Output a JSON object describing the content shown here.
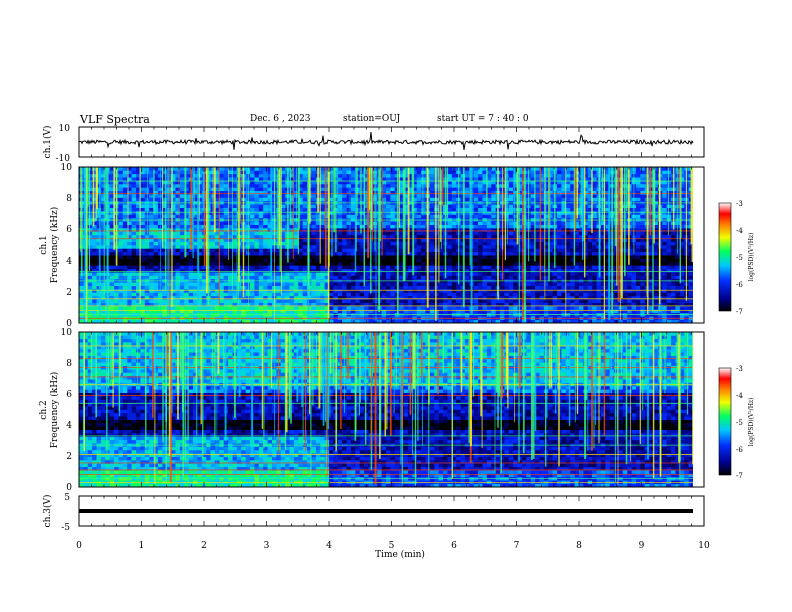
{
  "header": {
    "title": "VLF Spectra",
    "date": "Dec. 6 , 2023",
    "station": "station=OUJ",
    "start": "start UT = 7 : 40 : 0"
  },
  "chart_data": [
    {
      "type": "line",
      "panel": "ch1-waveform",
      "ylabel": "ch.1(V)",
      "ylim": [
        -10,
        10
      ],
      "y_ticks": [
        "10",
        "-10"
      ],
      "xlim": [
        0,
        10
      ],
      "baseline": 0,
      "trace_color": "#000000"
    },
    {
      "type": "heatmap",
      "panel": "ch1-spectrogram",
      "ylabel_channel": "ch.1",
      "ylabel": "Frequency (kHz)",
      "ylim": [
        0,
        10
      ],
      "y_ticks": [
        "0",
        "2",
        "4",
        "6",
        "8",
        "10"
      ],
      "xlim": [
        0,
        10
      ],
      "colorbar": {
        "label": "log(PSD)(V²/Hz)",
        "range": [
          -7,
          -3
        ],
        "ticks": [
          "-3",
          "-4",
          "-5",
          "-6",
          "-7"
        ]
      }
    },
    {
      "type": "heatmap",
      "panel": "ch2-spectrogram",
      "ylabel_channel": "ch.2",
      "ylabel": "Frequency (kHz)",
      "ylim": [
        0,
        10
      ],
      "y_ticks": [
        "0",
        "2",
        "4",
        "6",
        "8",
        "10"
      ],
      "xlim": [
        0,
        10
      ],
      "colorbar": {
        "label": "log(PSD)(V²/Hz)",
        "range": [
          -7,
          -3
        ],
        "ticks": [
          "-3",
          "-4",
          "-5",
          "-6",
          "-7"
        ]
      }
    },
    {
      "type": "line",
      "panel": "ch3-waveform",
      "ylabel": "ch.3(V)",
      "ylim": [
        -5,
        5
      ],
      "y_ticks": [
        "5",
        "-5"
      ],
      "xlim": [
        0,
        10
      ],
      "baseline": 0,
      "trace_color": "#000000"
    }
  ],
  "x_axis": {
    "label": "Time (min)",
    "ticks": [
      "0",
      "1",
      "2",
      "3",
      "4",
      "5",
      "6",
      "7",
      "8",
      "9",
      "10"
    ]
  },
  "colors": {
    "colormap": [
      "#000080",
      "#0000ff",
      "#00c0ff",
      "#00ff80",
      "#ffff00",
      "#ff8000",
      "#ff0000",
      "#ffffff"
    ]
  }
}
